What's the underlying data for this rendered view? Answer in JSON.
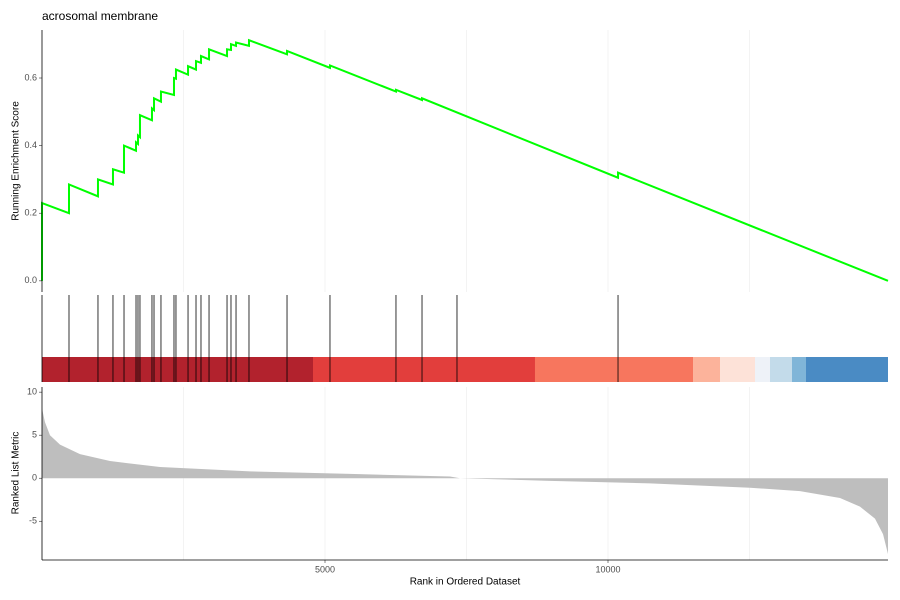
{
  "chart_data": [
    {
      "type": "line",
      "title": "acrosomal membrane",
      "ylabel": "Running Enrichment Score",
      "color": "#00ff00",
      "x": [
        0,
        0,
        477,
        477,
        989,
        989,
        1254,
        1254,
        1449,
        1449,
        1661,
        1661,
        1696,
        1696,
        1731,
        1731,
        1943,
        1943,
        1979,
        1979,
        2102,
        2102,
        2332,
        2332,
        2367,
        2367,
        2580,
        2580,
        2721,
        2721,
        2809,
        2809,
        2951,
        2951,
        3269,
        3269,
        3339,
        3339,
        3428,
        3428,
        3657,
        3657,
        4329,
        4329,
        5088,
        5088,
        6254,
        6254,
        6714,
        6714,
        10177,
        10177,
        14947
      ],
      "values": [
        0,
        0.23,
        0.2,
        0.285,
        0.25,
        0.3,
        0.285,
        0.33,
        0.32,
        0.4,
        0.385,
        0.41,
        0.405,
        0.43,
        0.425,
        0.49,
        0.475,
        0.51,
        0.505,
        0.54,
        0.53,
        0.56,
        0.55,
        0.6,
        0.598,
        0.625,
        0.61,
        0.635,
        0.625,
        0.65,
        0.645,
        0.665,
        0.655,
        0.685,
        0.665,
        0.685,
        0.683,
        0.7,
        0.695,
        0.705,
        0.695,
        0.712,
        0.67,
        0.68,
        0.63,
        0.637,
        0.56,
        0.565,
        0.535,
        0.54,
        0.305,
        0.32,
        0.0
      ],
      "xlim": [
        0,
        14947
      ],
      "ylim": [
        -0.033,
        0.742
      ],
      "yticks": [
        {
          "value": 0,
          "label": "0.0"
        },
        0.2,
        0.4,
        0.6
      ],
      "xgrid": [
        2500,
        5000,
        7500,
        10000,
        12500
      ]
    },
    {
      "type": "rug",
      "color": "#000000",
      "x": [
        0,
        477,
        989,
        1254,
        1449,
        1661,
        1696,
        1731,
        1943,
        1979,
        2102,
        2332,
        2367,
        2580,
        2721,
        2809,
        2951,
        3269,
        3339,
        3428,
        3657,
        4329,
        5088,
        6254,
        6714,
        7332,
        10177
      ],
      "xlim": [
        0,
        14947
      ],
      "band_edges": [
        0,
        4788,
        8710,
        11502,
        11979,
        12597,
        12862,
        13251,
        13498,
        14947
      ],
      "band_colors": [
        "#b2222d",
        "#e23e3c",
        "#f7765e",
        "#fcb39b",
        "#fde2d8",
        "#eef2f8",
        "#c3dbea",
        "#80b5d8",
        "#4a8bc4"
      ]
    },
    {
      "type": "area",
      "xlabel": "Rank in Ordered Dataset",
      "ylabel": "Ranked List Metric",
      "color": "#bebebe",
      "x": [
        0,
        53,
        141,
        318,
        671,
        1201,
        2085,
        3675,
        5442,
        7208,
        7385,
        8975,
        10742,
        12509,
        13392,
        14099,
        14452,
        14717,
        14859,
        14947
      ],
      "values": [
        8.1,
        6.5,
        5.0,
        3.9,
        2.8,
        2.0,
        1.3,
        0.8,
        0.5,
        0.2,
        0,
        -0.3,
        -0.6,
        -1.1,
        -1.5,
        -2.3,
        -3.3,
        -4.7,
        -6.5,
        -8.8
      ],
      "xlim": [
        0,
        14947
      ],
      "ylim": [
        -9.5,
        10.6
      ],
      "yticks": [
        -5,
        0,
        5,
        10
      ],
      "xticks": [
        5000,
        10000
      ],
      "xgrid": [
        2500,
        5000,
        7500,
        10000,
        12500
      ]
    }
  ]
}
